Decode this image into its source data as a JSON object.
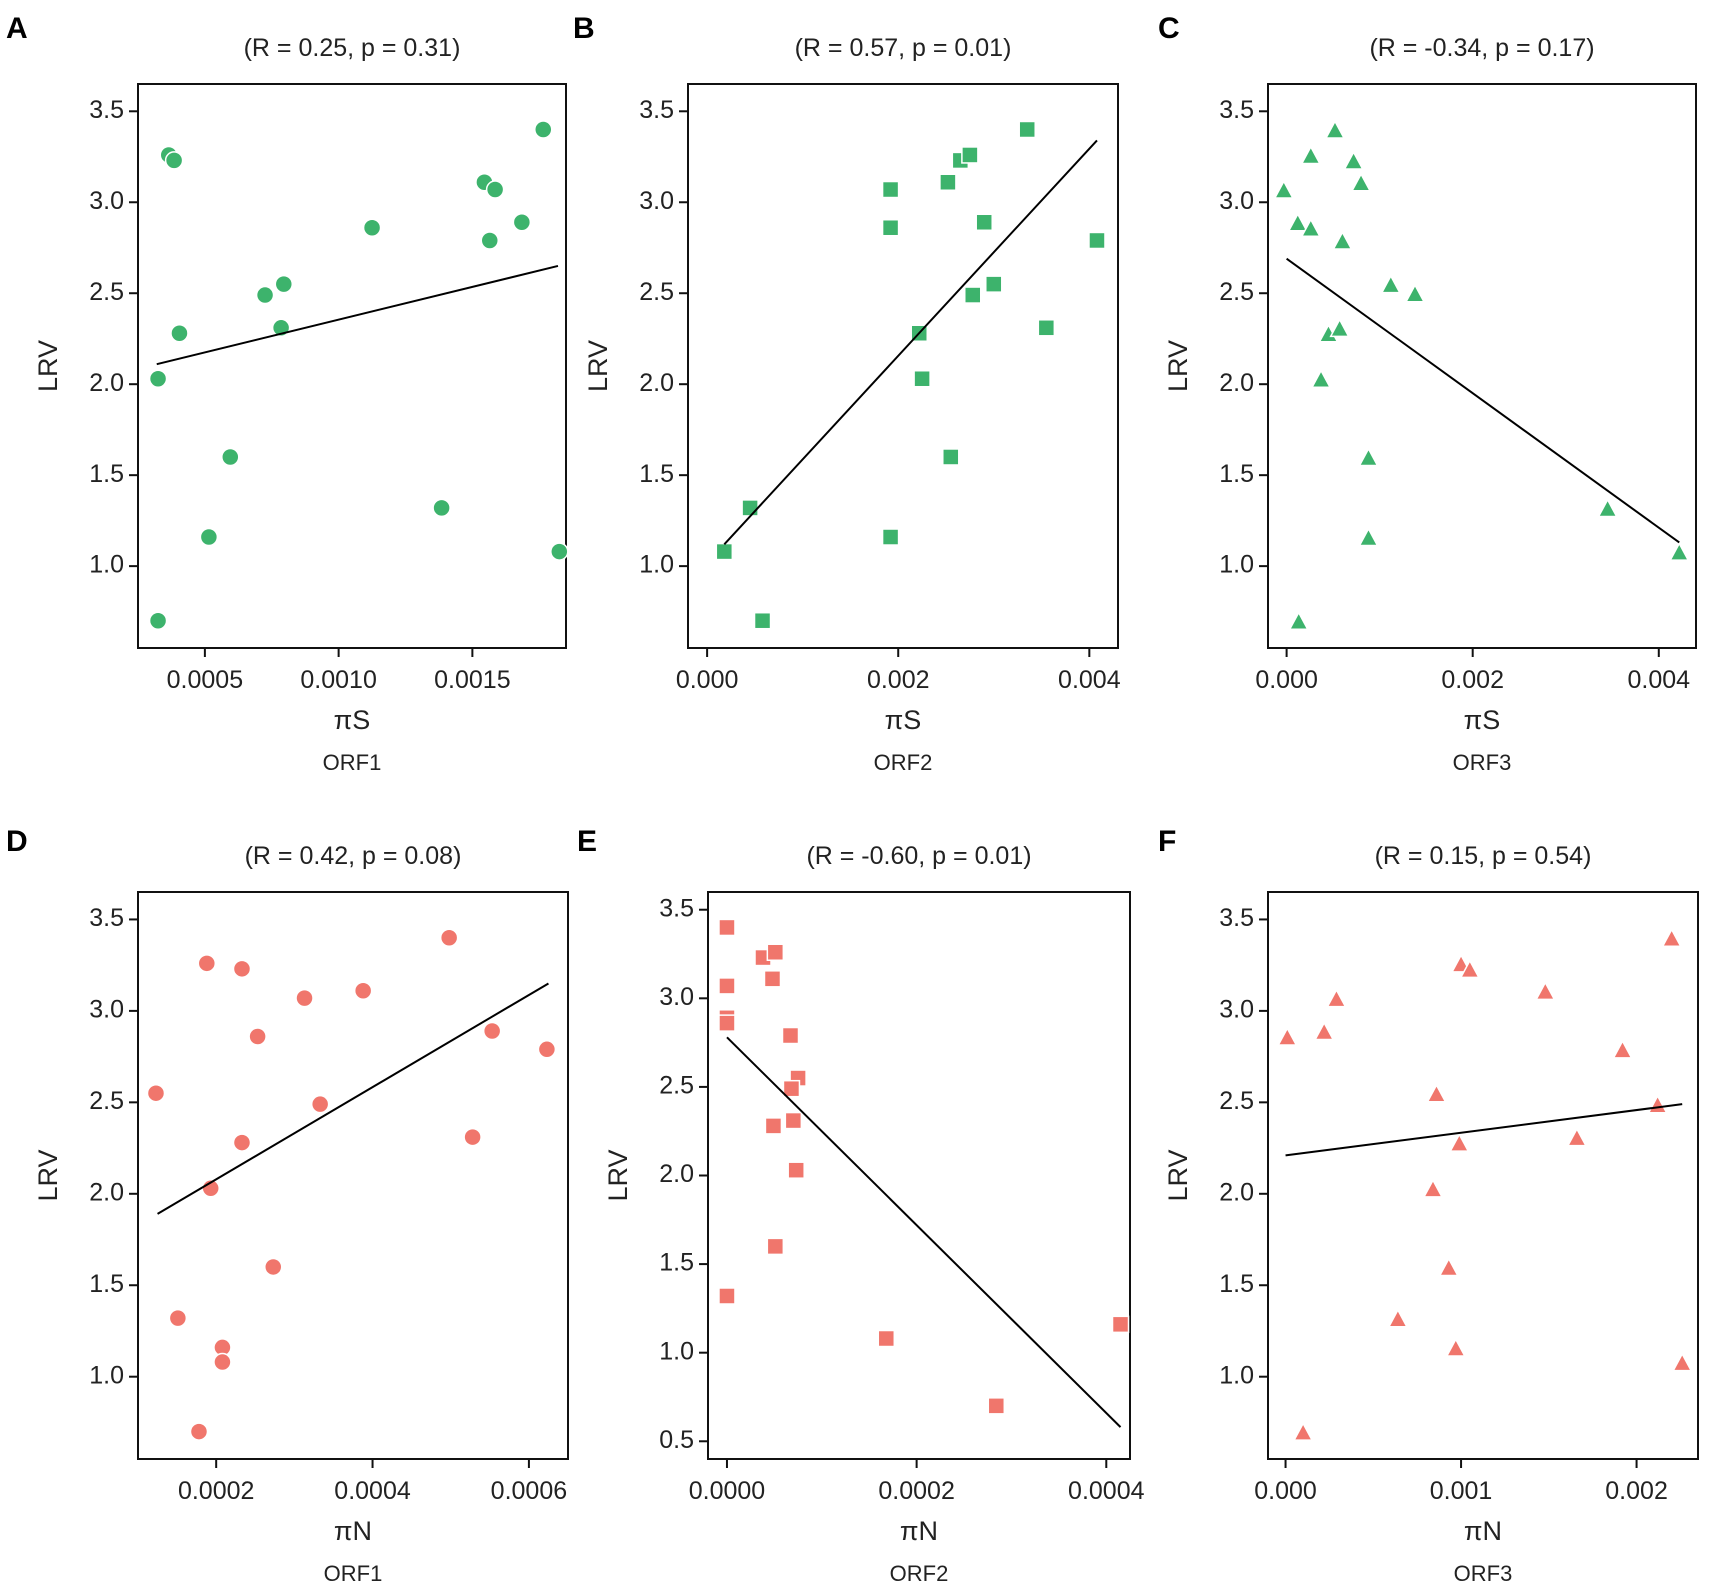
{
  "colors": {
    "green": "#3db36c",
    "salmon": "#f0766c",
    "marker_edge": "#ffffff",
    "axis": "#111111",
    "fit": "#000000"
  },
  "chart_data": [
    {
      "panel": "A",
      "type": "scatter",
      "marker": "circle",
      "color": "green",
      "title": "(R = 0.25, p = 0.31)",
      "xlabel": "πS",
      "ylabel": "LRV",
      "sublabel": "ORF1",
      "xlim": [
        0.00025,
        0.00185
      ],
      "ylim": [
        0.55,
        3.65
      ],
      "xticks": [
        0.0005,
        0.001,
        0.0015
      ],
      "xtick_labels": [
        "0.0005",
        "0.0010",
        "0.0015"
      ],
      "yticks": [
        1.0,
        1.5,
        2.0,
        2.5,
        3.0,
        3.5
      ],
      "ytick_labels": [
        "1.0",
        "1.5",
        "2.0",
        "2.5",
        "3.0",
        "3.5"
      ],
      "x": [
        0.000365,
        0.000385,
        0.000405,
        0.000325,
        0.000325,
        0.000595,
        0.000515,
        0.000725,
        0.000795,
        0.000785,
        0.001125,
        0.001385,
        0.001545,
        0.001585,
        0.001565,
        0.001685,
        0.001765,
        0.001825
      ],
      "y": [
        3.26,
        3.23,
        2.28,
        2.03,
        0.7,
        1.6,
        1.16,
        2.49,
        2.55,
        2.31,
        2.86,
        1.32,
        3.11,
        3.07,
        2.79,
        2.89,
        3.4,
        1.08
      ],
      "fit": {
        "x": [
          0.00032,
          0.00182
        ],
        "y": [
          2.11,
          2.65
        ]
      }
    },
    {
      "panel": "B",
      "type": "scatter",
      "marker": "square",
      "color": "green",
      "title": "(R = 0.57, p = 0.01)",
      "xlabel": "πS",
      "ylabel": "LRV",
      "sublabel": "ORF2",
      "xlim": [
        -0.0002,
        0.0043
      ],
      "ylim": [
        0.55,
        3.65
      ],
      "xticks": [
        0.0,
        0.002,
        0.004
      ],
      "xtick_labels": [
        "0.000",
        "0.002",
        "0.004"
      ],
      "yticks": [
        1.0,
        1.5,
        2.0,
        2.5,
        3.0,
        3.5
      ],
      "ytick_labels": [
        "1.0",
        "1.5",
        "2.0",
        "2.5",
        "3.0",
        "3.5"
      ],
      "x": [
        0.00018,
        0.00045,
        0.00058,
        0.00192,
        0.00192,
        0.00192,
        0.00222,
        0.00225,
        0.00252,
        0.00255,
        0.00265,
        0.00275,
        0.00278,
        0.0029,
        0.003,
        0.00335,
        0.00355,
        0.00408
      ],
      "y": [
        1.08,
        1.32,
        0.7,
        3.07,
        2.86,
        1.16,
        2.28,
        2.03,
        3.11,
        1.6,
        3.23,
        3.26,
        2.49,
        2.89,
        2.55,
        3.4,
        2.31,
        2.79
      ],
      "fit": {
        "x": [
          0.00018,
          0.00408
        ],
        "y": [
          1.12,
          3.34
        ]
      }
    },
    {
      "panel": "C",
      "type": "scatter",
      "marker": "triangle",
      "color": "green",
      "title": "(R = -0.34, p = 0.17)",
      "xlabel": "πS",
      "ylabel": "LRV",
      "sublabel": "ORF3",
      "xlim": [
        -0.0002,
        0.0044
      ],
      "ylim": [
        0.55,
        3.65
      ],
      "xticks": [
        0.0,
        0.002,
        0.004
      ],
      "xtick_labels": [
        "0.000",
        "0.002",
        "0.004"
      ],
      "yticks": [
        1.0,
        1.5,
        2.0,
        2.5,
        3.0,
        3.5
      ],
      "ytick_labels": [
        "1.0",
        "1.5",
        "2.0",
        "2.5",
        "3.0",
        "3.5"
      ],
      "x": [
        -3e-05,
        0.00012,
        0.00026,
        0.00026,
        0.00052,
        0.00072,
        0.0008,
        0.0006,
        0.00112,
        0.00138,
        0.00045,
        0.00057,
        0.00037,
        0.00088,
        0.00088,
        0.00013,
        0.00345,
        0.00422
      ],
      "y": [
        3.06,
        2.88,
        3.25,
        2.85,
        3.39,
        3.22,
        3.1,
        2.78,
        2.54,
        2.49,
        2.27,
        2.3,
        2.02,
        1.59,
        1.15,
        0.69,
        1.31,
        1.07
      ],
      "fit": {
        "x": [
          0.0,
          0.00422
        ],
        "y": [
          2.69,
          1.13
        ]
      }
    },
    {
      "panel": "D",
      "type": "scatter",
      "marker": "circle",
      "color": "salmon",
      "title": "(R = 0.42, p = 0.08)",
      "xlabel": "πN",
      "ylabel": "LRV",
      "sublabel": "ORF1",
      "xlim": [
        0.0001,
        0.00065
      ],
      "ylim": [
        0.55,
        3.65
      ],
      "xticks": [
        0.0002,
        0.0004,
        0.0006
      ],
      "xtick_labels": [
        "0.0002",
        "0.0004",
        "0.0006"
      ],
      "yticks": [
        1.0,
        1.5,
        2.0,
        2.5,
        3.0,
        3.5
      ],
      "ytick_labels": [
        "1.0",
        "1.5",
        "2.0",
        "2.5",
        "3.0",
        "3.5"
      ],
      "x": [
        0.000123,
        0.000188,
        0.000233,
        0.000253,
        0.000313,
        0.000388,
        0.000498,
        0.000553,
        0.000623,
        0.000333,
        0.000233,
        0.000193,
        0.000273,
        0.000151,
        0.000208,
        0.000208,
        0.000178,
        0.000528
      ],
      "y": [
        2.55,
        3.26,
        3.23,
        2.86,
        3.07,
        3.11,
        3.4,
        2.89,
        2.79,
        2.49,
        2.28,
        2.03,
        1.6,
        1.32,
        1.16,
        1.08,
        0.7,
        2.31
      ],
      "fit": {
        "x": [
          0.000125,
          0.000625
        ],
        "y": [
          1.89,
          3.15
        ]
      }
    },
    {
      "panel": "E",
      "type": "scatter",
      "marker": "square",
      "color": "salmon",
      "title": "(R = -0.60, p = 0.01)",
      "xlabel": "πN",
      "ylabel": "LRV",
      "sublabel": "ORF2",
      "xlim": [
        -2e-05,
        0.000425
      ],
      "ylim": [
        0.4,
        3.6
      ],
      "xticks": [
        0.0,
        0.0002,
        0.0004
      ],
      "xtick_labels": [
        "0.0000",
        "0.0002",
        "0.0004"
      ],
      "yticks": [
        0.5,
        1.0,
        1.5,
        2.0,
        2.5,
        3.0,
        3.5
      ],
      "ytick_labels": [
        "0.5",
        "1.0",
        "1.5",
        "2.0",
        "2.5",
        "3.0",
        "3.5"
      ],
      "x": [
        0.0,
        0.0,
        0.0,
        0.0,
        0.0,
        3.8e-05,
        5.1e-05,
        4.8e-05,
        6.7e-05,
        7.5e-05,
        6.8e-05,
        7e-05,
        4.9e-05,
        7.3e-05,
        5.1e-05,
        0.000168,
        0.000284,
        0.000415
      ],
      "y": [
        3.4,
        3.07,
        2.89,
        2.86,
        1.32,
        3.23,
        3.26,
        3.11,
        2.79,
        2.55,
        2.49,
        2.31,
        2.28,
        2.03,
        1.6,
        1.08,
        0.7,
        1.16
      ],
      "fit": {
        "x": [
          0.0,
          0.000415
        ],
        "y": [
          2.78,
          0.58
        ]
      }
    },
    {
      "panel": "F",
      "type": "scatter",
      "marker": "triangle",
      "color": "salmon",
      "title": "(R = 0.15, p = 0.54)",
      "xlabel": "πN",
      "ylabel": "LRV",
      "sublabel": "ORF3",
      "xlim": [
        -0.0001,
        0.00235
      ],
      "ylim": [
        0.55,
        3.65
      ],
      "xticks": [
        0.0,
        0.001,
        0.002
      ],
      "xtick_labels": [
        "0.000",
        "0.001",
        "0.002"
      ],
      "yticks": [
        1.0,
        1.5,
        2.0,
        2.5,
        3.0,
        3.5
      ],
      "ytick_labels": [
        "1.0",
        "1.5",
        "2.0",
        "2.5",
        "3.0",
        "3.5"
      ],
      "x": [
        1e-05,
        0.00022,
        0.00029,
        0.0001,
        0.00064,
        0.00084,
        0.00086,
        0.00093,
        0.00097,
        0.001,
        0.00099,
        0.00105,
        0.00148,
        0.00166,
        0.00192,
        0.00212,
        0.0022,
        0.00226
      ],
      "y": [
        2.85,
        2.88,
        3.06,
        0.69,
        1.31,
        2.02,
        2.54,
        1.59,
        1.15,
        3.25,
        2.27,
        3.22,
        3.1,
        2.3,
        2.78,
        2.48,
        3.39,
        1.07
      ],
      "fit": {
        "x": [
          0.0,
          0.00226
        ],
        "y": [
          2.21,
          2.49
        ]
      }
    }
  ]
}
